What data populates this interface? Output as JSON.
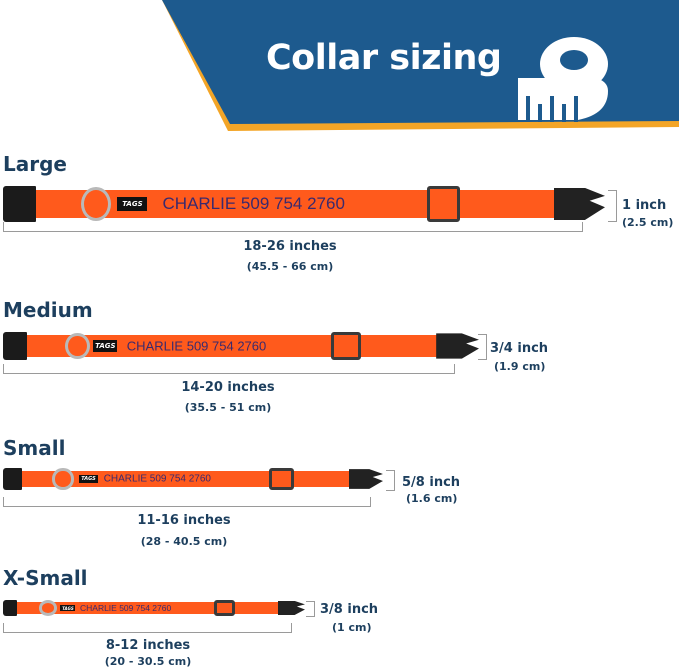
{
  "header": {
    "title": "Collar sizing",
    "icon": "measuring-tape-icon",
    "blue": "#1d5a8e",
    "accent": "#f3a527"
  },
  "collar_brand": "TAGS",
  "sizes": [
    {
      "name": "Large",
      "engraving": "CHARLIE 509 754 2760",
      "length_in": "18-26 inches",
      "length_cm": "(45.5 - 66 cm)",
      "width_in": "1 inch",
      "width_cm": "(2.5 cm)"
    },
    {
      "name": "Medium",
      "engraving": "CHARLIE 509 754 2760",
      "length_in": "14-20 inches",
      "length_cm": "(35.5 - 51 cm)",
      "width_in": "3/4 inch",
      "width_cm": "(1.9 cm)"
    },
    {
      "name": "Small",
      "engraving": "CHARLIE 509 754 2760",
      "length_in": "11-16 inches",
      "length_cm": "(28 - 40.5 cm)",
      "width_in": "5/8 inch",
      "width_cm": "(1.6 cm)"
    },
    {
      "name": "X-Small",
      "engraving": "CHARLIE 509 754 2760",
      "length_in": "8-12 inches",
      "length_cm": "(20 - 30.5 cm)",
      "width_in": "3/8 inch",
      "width_cm": "(1 cm)"
    }
  ]
}
